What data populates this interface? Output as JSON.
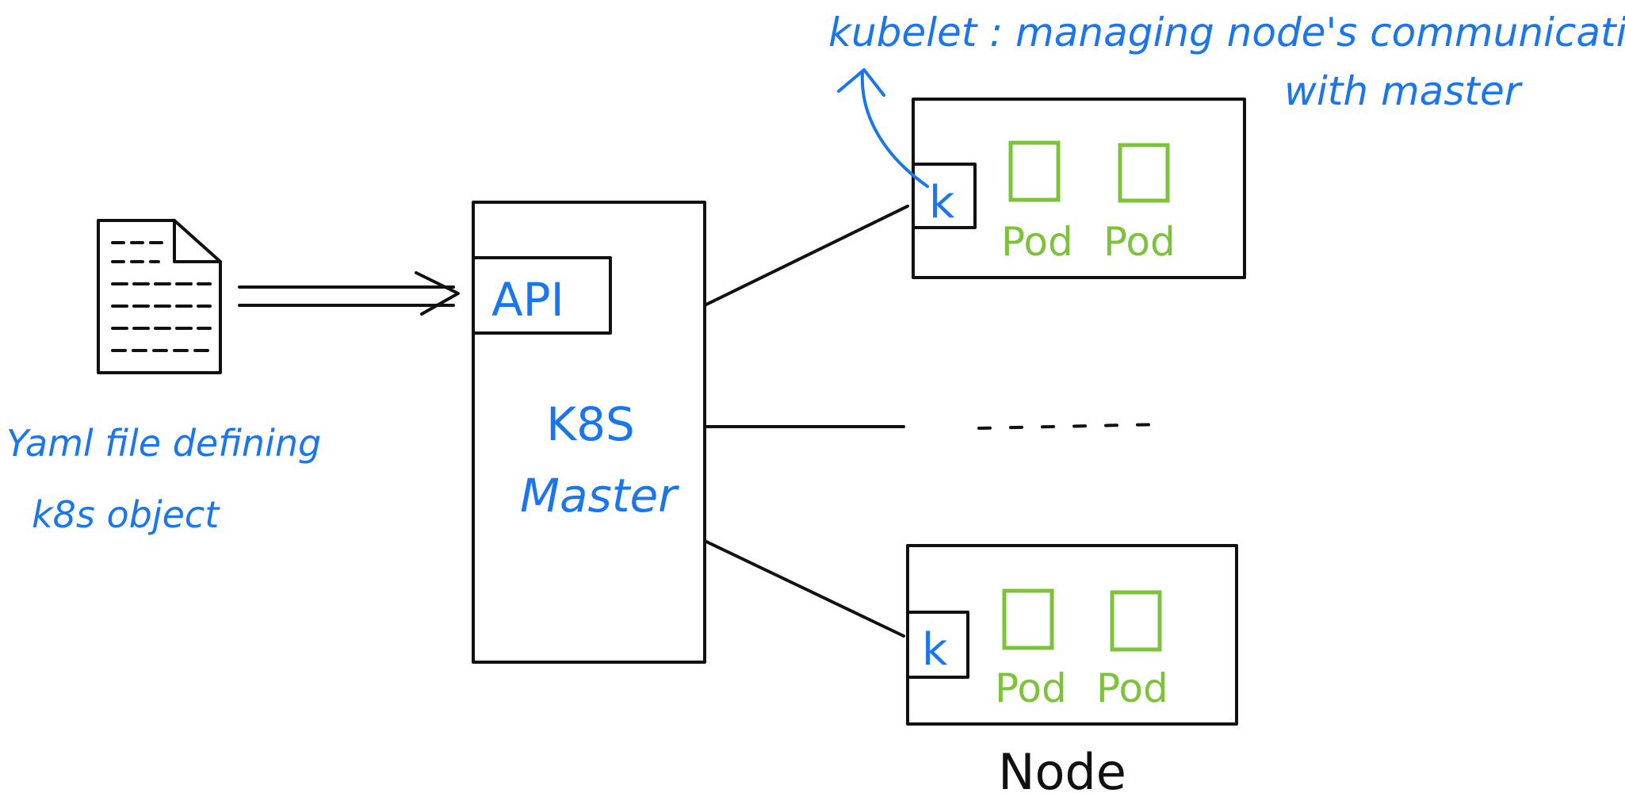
{
  "colors": {
    "ink": "#111111",
    "annotation": "#1976f0",
    "pod": "#7cc33a"
  },
  "yaml": {
    "icon": "document-icon",
    "label_line1": "Yaml file defining",
    "label_line2": "k8s object"
  },
  "master": {
    "api_label": "API",
    "title_line1": "K8S",
    "title_line2": "Master"
  },
  "annotation": {
    "line1": "kubelet : managing node's communication",
    "line2": "with master"
  },
  "nodes": [
    {
      "kubelet_label": "k",
      "pods": [
        "Pod",
        "Pod"
      ]
    },
    {
      "kubelet_label": "k",
      "pods": [
        "Pod",
        "Pod"
      ]
    }
  ],
  "node_caption": "Node"
}
